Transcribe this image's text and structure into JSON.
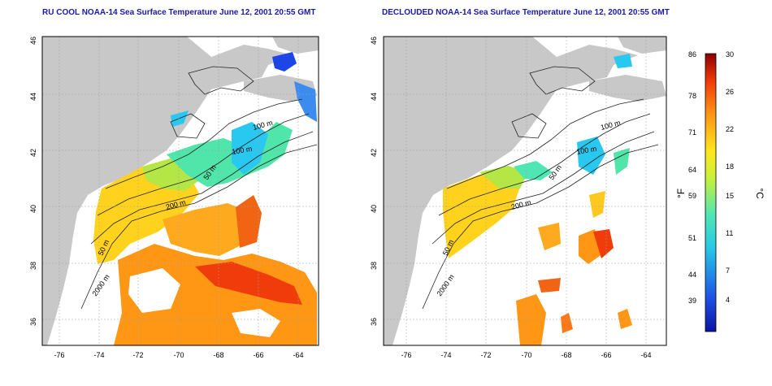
{
  "titles": {
    "left": "RU COOL NOAA-14 Sea Surface Temperature June 12, 2001 20:55 GMT",
    "right": "DECLOUDED NOAA-14 Sea Surface Temperature June 12, 2001 20:55 GMT"
  },
  "axes": {
    "lat_ticks": [
      "46",
      "44",
      "42",
      "40",
      "38",
      "36"
    ],
    "lon_ticks": [
      "-76",
      "-74",
      "-72",
      "-70",
      "-68",
      "-66",
      "-64"
    ]
  },
  "contours": {
    "left": [
      "100 m",
      "100 m",
      "50 m",
      "200 m",
      "50 m",
      "2000 m"
    ],
    "right": [
      "100 m",
      "100 m",
      "50 m",
      "200 m",
      "50 m",
      "2000 m"
    ]
  },
  "colorbar": {
    "fahrenheit_ticks": [
      "86",
      "78",
      "71",
      "64",
      "59",
      "51",
      "44",
      "39"
    ],
    "celsius_ticks": [
      "30",
      "26",
      "22",
      "18",
      "15",
      "11",
      "7",
      "4"
    ],
    "fahrenheit_label": "°F",
    "celsius_label": "°C"
  },
  "colors": {
    "land": "#c8c8c8",
    "title": "#1a1aa6",
    "cold": "#0a14a0",
    "hot": "#8c0000"
  }
}
